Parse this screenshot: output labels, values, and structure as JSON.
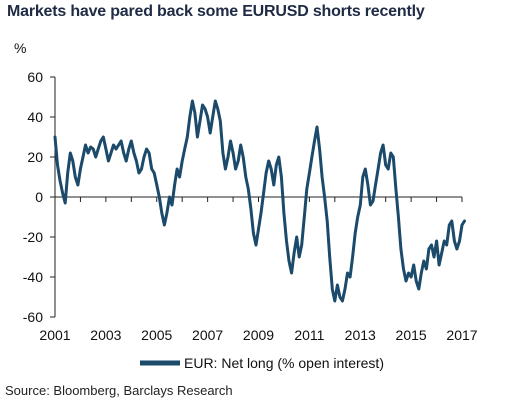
{
  "title": "Markets have pared back some EURUSD shorts recently",
  "source": "Source: Bloomberg, Barclays Research",
  "colors": {
    "series": "#1b4a6b",
    "axis": "#222222",
    "title": "#1f2a44"
  },
  "chart_data": {
    "type": "line",
    "title": "Markets have pared back some EURUSD shorts recently",
    "ylabel": "%",
    "xlabel": "",
    "ylim": [
      -60,
      60
    ],
    "xlim": [
      2001,
      2017
    ],
    "y_ticks": [
      60,
      40,
      20,
      0,
      -20,
      -40,
      -60
    ],
    "x_ticks": [
      "2001",
      "2003",
      "2005",
      "2007",
      "2009",
      "2011",
      "2013",
      "2015",
      "2017"
    ],
    "grid": false,
    "legend_position": "bottom-center",
    "series": [
      {
        "name": "EUR: Net long (% open interest)",
        "points": [
          [
            2001.0,
            30
          ],
          [
            2001.1,
            16
          ],
          [
            2001.2,
            8
          ],
          [
            2001.3,
            2
          ],
          [
            2001.4,
            -3
          ],
          [
            2001.5,
            12
          ],
          [
            2001.6,
            22
          ],
          [
            2001.7,
            18
          ],
          [
            2001.8,
            10
          ],
          [
            2001.9,
            6
          ],
          [
            2002.0,
            14
          ],
          [
            2002.1,
            20
          ],
          [
            2002.2,
            26
          ],
          [
            2002.3,
            22
          ],
          [
            2002.4,
            25
          ],
          [
            2002.5,
            24
          ],
          [
            2002.6,
            20
          ],
          [
            2002.7,
            24
          ],
          [
            2002.8,
            28
          ],
          [
            2002.9,
            30
          ],
          [
            2003.0,
            24
          ],
          [
            2003.1,
            18
          ],
          [
            2003.2,
            22
          ],
          [
            2003.3,
            26
          ],
          [
            2003.4,
            24
          ],
          [
            2003.5,
            26
          ],
          [
            2003.6,
            28
          ],
          [
            2003.7,
            22
          ],
          [
            2003.8,
            18
          ],
          [
            2003.9,
            24
          ],
          [
            2004.0,
            28
          ],
          [
            2004.1,
            22
          ],
          [
            2004.2,
            18
          ],
          [
            2004.3,
            12
          ],
          [
            2004.4,
            14
          ],
          [
            2004.5,
            20
          ],
          [
            2004.6,
            24
          ],
          [
            2004.7,
            22
          ],
          [
            2004.8,
            14
          ],
          [
            2004.9,
            12
          ],
          [
            2005.0,
            6
          ],
          [
            2005.1,
            0
          ],
          [
            2005.2,
            -8
          ],
          [
            2005.3,
            -14
          ],
          [
            2005.4,
            -8
          ],
          [
            2005.5,
            0
          ],
          [
            2005.6,
            -4
          ],
          [
            2005.7,
            6
          ],
          [
            2005.8,
            14
          ],
          [
            2005.9,
            10
          ],
          [
            2006.0,
            18
          ],
          [
            2006.1,
            24
          ],
          [
            2006.2,
            30
          ],
          [
            2006.3,
            40
          ],
          [
            2006.4,
            48
          ],
          [
            2006.5,
            42
          ],
          [
            2006.6,
            30
          ],
          [
            2006.7,
            38
          ],
          [
            2006.8,
            46
          ],
          [
            2006.9,
            44
          ],
          [
            2007.0,
            40
          ],
          [
            2007.1,
            32
          ],
          [
            2007.2,
            40
          ],
          [
            2007.3,
            48
          ],
          [
            2007.4,
            44
          ],
          [
            2007.5,
            38
          ],
          [
            2007.6,
            22
          ],
          [
            2007.7,
            14
          ],
          [
            2007.8,
            20
          ],
          [
            2007.9,
            28
          ],
          [
            2008.0,
            22
          ],
          [
            2008.1,
            14
          ],
          [
            2008.2,
            18
          ],
          [
            2008.3,
            26
          ],
          [
            2008.4,
            20
          ],
          [
            2008.5,
            10
          ],
          [
            2008.6,
            4
          ],
          [
            2008.7,
            -6
          ],
          [
            2008.8,
            -18
          ],
          [
            2008.9,
            -24
          ],
          [
            2009.0,
            -16
          ],
          [
            2009.1,
            -8
          ],
          [
            2009.2,
            2
          ],
          [
            2009.3,
            12
          ],
          [
            2009.4,
            18
          ],
          [
            2009.5,
            14
          ],
          [
            2009.6,
            6
          ],
          [
            2009.7,
            16
          ],
          [
            2009.8,
            20
          ],
          [
            2009.9,
            10
          ],
          [
            2010.0,
            -8
          ],
          [
            2010.1,
            -22
          ],
          [
            2010.2,
            -32
          ],
          [
            2010.3,
            -38
          ],
          [
            2010.4,
            -28
          ],
          [
            2010.5,
            -20
          ],
          [
            2010.6,
            -30
          ],
          [
            2010.7,
            -24
          ],
          [
            2010.8,
            -10
          ],
          [
            2010.9,
            4
          ],
          [
            2011.0,
            12
          ],
          [
            2011.1,
            20
          ],
          [
            2011.2,
            28
          ],
          [
            2011.3,
            35
          ],
          [
            2011.4,
            24
          ],
          [
            2011.5,
            10
          ],
          [
            2011.6,
            0
          ],
          [
            2011.7,
            -12
          ],
          [
            2011.8,
            -30
          ],
          [
            2011.9,
            -46
          ],
          [
            2012.0,
            -52
          ],
          [
            2012.1,
            -44
          ],
          [
            2012.2,
            -50
          ],
          [
            2012.3,
            -52
          ],
          [
            2012.4,
            -46
          ],
          [
            2012.5,
            -38
          ],
          [
            2012.6,
            -40
          ],
          [
            2012.7,
            -30
          ],
          [
            2012.8,
            -18
          ],
          [
            2012.9,
            -10
          ],
          [
            2013.0,
            -4
          ],
          [
            2013.1,
            10
          ],
          [
            2013.2,
            14
          ],
          [
            2013.3,
            6
          ],
          [
            2013.4,
            -4
          ],
          [
            2013.5,
            -2
          ],
          [
            2013.6,
            6
          ],
          [
            2013.7,
            14
          ],
          [
            2013.8,
            22
          ],
          [
            2013.9,
            26
          ],
          [
            2014.0,
            16
          ],
          [
            2014.1,
            14
          ],
          [
            2014.2,
            22
          ],
          [
            2014.3,
            20
          ],
          [
            2014.4,
            4
          ],
          [
            2014.5,
            -10
          ],
          [
            2014.6,
            -26
          ],
          [
            2014.7,
            -36
          ],
          [
            2014.8,
            -42
          ],
          [
            2014.9,
            -38
          ],
          [
            2015.0,
            -40
          ],
          [
            2015.1,
            -34
          ],
          [
            2015.2,
            -42
          ],
          [
            2015.3,
            -46
          ],
          [
            2015.4,
            -38
          ],
          [
            2015.5,
            -32
          ],
          [
            2015.6,
            -36
          ],
          [
            2015.7,
            -26
          ],
          [
            2015.8,
            -24
          ],
          [
            2015.9,
            -30
          ],
          [
            2016.0,
            -22
          ],
          [
            2016.1,
            -34
          ],
          [
            2016.2,
            -28
          ],
          [
            2016.3,
            -22
          ],
          [
            2016.4,
            -24
          ],
          [
            2016.5,
            -14
          ],
          [
            2016.6,
            -12
          ],
          [
            2016.7,
            -22
          ],
          [
            2016.8,
            -26
          ],
          [
            2016.9,
            -22
          ],
          [
            2017.0,
            -14
          ],
          [
            2017.1,
            -12
          ]
        ]
      }
    ]
  }
}
